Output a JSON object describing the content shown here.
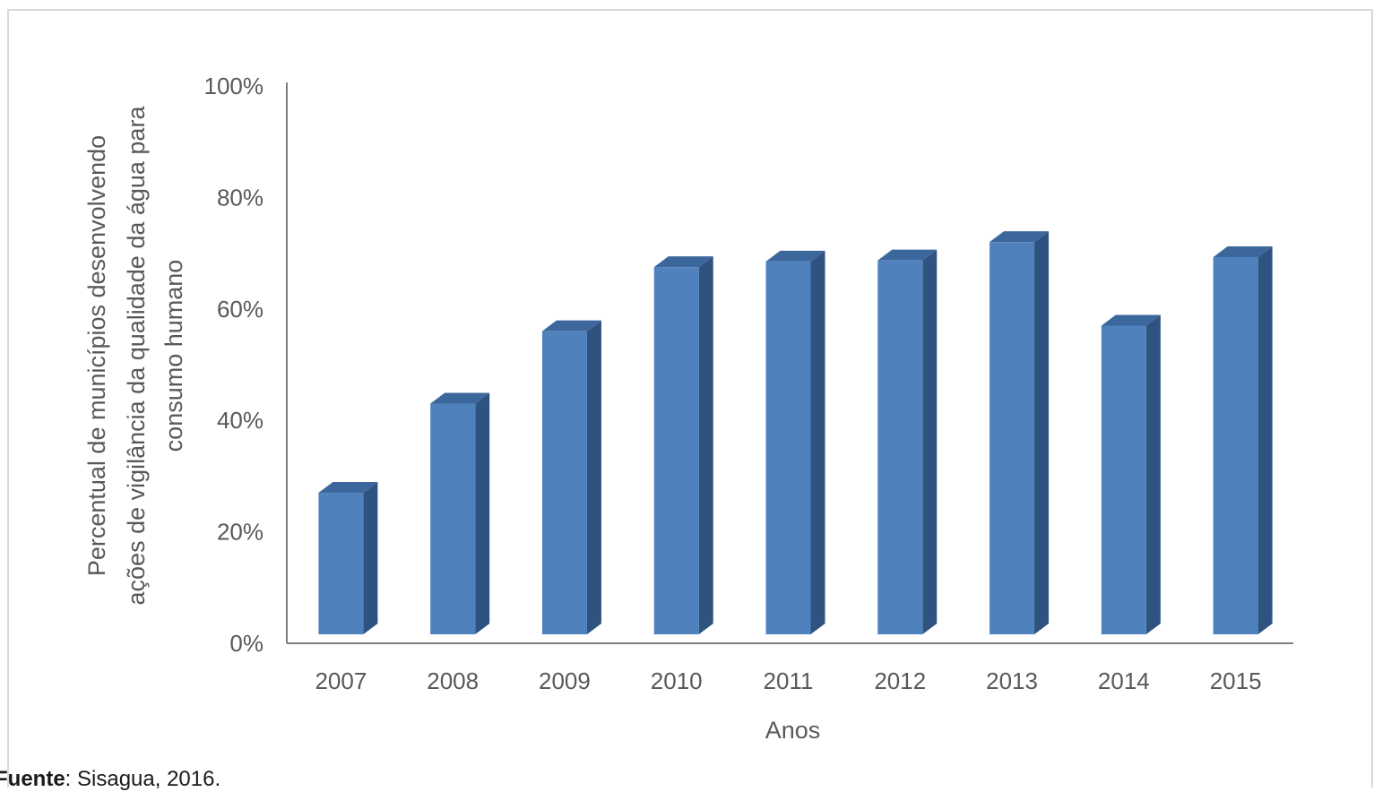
{
  "chart_data": {
    "type": "bar",
    "style": "3d-column",
    "categories": [
      "2007",
      "2008",
      "2009",
      "2010",
      "2011",
      "2012",
      "2013",
      "2014",
      "2015"
    ],
    "values": [
      27,
      43,
      56,
      67.5,
      68.5,
      68.7,
      72,
      57,
      69.3
    ],
    "value_unit": "%",
    "xlabel": "Anos",
    "ylabel": "Percentual de municípios desenvolvendo ações de vigilância da qualidade da água para consumo humano",
    "ylabel_lines": [
      "Percentual de municípios desenvolvendo",
      "ações de vigilância da qualidade da água para",
      "consumo humano"
    ],
    "ylim": [
      0,
      100
    ],
    "yticks": [
      "0%",
      "20%",
      "40%",
      "60%",
      "80%",
      "100%"
    ],
    "ytick_values": [
      0,
      20,
      40,
      60,
      80,
      100
    ],
    "grid": false,
    "legend": "none",
    "colors": {
      "bar_front": "#4f81bd",
      "bar_side": "#2f5381",
      "bar_top": "#3c679c",
      "axis": "#7f7f7f",
      "text": "#595959"
    }
  },
  "source": {
    "label": "Fuente",
    "text": ": Sisagua, 2016."
  }
}
